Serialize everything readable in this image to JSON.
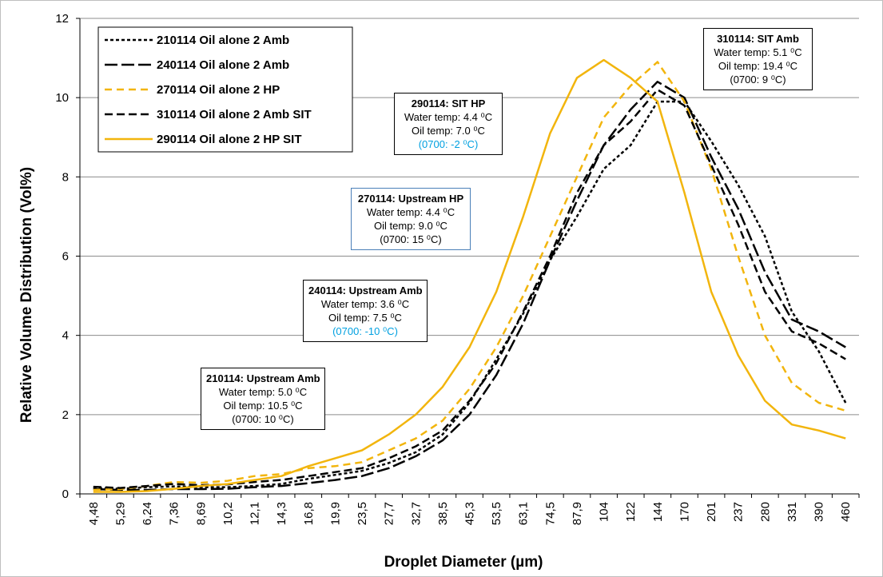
{
  "chart_data": {
    "type": "line",
    "xlabel": "Droplet Diameter (µm)",
    "ylabel": "Relative Volume Distribution (Vol%)",
    "ylim": [
      0,
      12
    ],
    "yticks": [
      "0",
      "2",
      "4",
      "6",
      "8",
      "10",
      "12"
    ],
    "grid": "horizontal",
    "legend_position": "top-left",
    "categories": [
      "4,48",
      "5,29",
      "6,24",
      "7,36",
      "8,69",
      "10,2",
      "12,1",
      "14,3",
      "16,8",
      "19,9",
      "23,5",
      "27,7",
      "32,7",
      "38,5",
      "45,3",
      "53,5",
      "63,1",
      "74,5",
      "87,9",
      "104",
      "122",
      "144",
      "170",
      "201",
      "237",
      "280",
      "331",
      "390",
      "460"
    ],
    "series": [
      {
        "name": "210114 Oil alone 2 Amb",
        "color": "#000000",
        "dash": "4,3",
        "values": [
          0.15,
          0.13,
          0.17,
          0.19,
          0.17,
          0.17,
          0.2,
          0.25,
          0.38,
          0.48,
          0.58,
          0.78,
          1.05,
          1.5,
          2.3,
          3.4,
          4.55,
          5.9,
          7.0,
          8.2,
          8.8,
          9.9,
          9.9,
          8.9,
          7.8,
          6.5,
          4.6,
          3.6,
          2.3
        ]
      },
      {
        "name": "240114 Oil alone 2 Amb",
        "color": "#000000",
        "dash": "16,5",
        "values": [
          0.12,
          0.1,
          0.1,
          0.12,
          0.12,
          0.13,
          0.17,
          0.2,
          0.27,
          0.35,
          0.45,
          0.65,
          0.95,
          1.35,
          2.0,
          3.0,
          4.3,
          5.9,
          7.4,
          8.8,
          9.7,
          10.4,
          10.0,
          8.5,
          7.2,
          5.6,
          4.4,
          4.1,
          3.7
        ]
      },
      {
        "name": "270114 Oil alone 2 HP",
        "color": "#f2b50d",
        "dash": "9,6",
        "values": [
          0.1,
          0.12,
          0.2,
          0.3,
          0.28,
          0.33,
          0.45,
          0.5,
          0.65,
          0.7,
          0.8,
          1.1,
          1.4,
          1.85,
          2.65,
          3.7,
          5.0,
          6.5,
          8.0,
          9.5,
          10.3,
          10.9,
          9.9,
          8.2,
          6.0,
          4.0,
          2.8,
          2.3,
          2.1
        ]
      },
      {
        "name": "310114 Oil alone 2 Amb SIT",
        "color": "#000000",
        "dash": "10,5",
        "values": [
          0.18,
          0.15,
          0.2,
          0.25,
          0.22,
          0.24,
          0.3,
          0.35,
          0.45,
          0.55,
          0.65,
          0.9,
          1.2,
          1.6,
          2.35,
          3.3,
          4.6,
          6.0,
          7.6,
          8.8,
          9.4,
          10.2,
          9.8,
          8.3,
          6.8,
          5.1,
          4.1,
          3.8,
          3.4
        ]
      },
      {
        "name": "290114 Oil alone 2 HP SIT",
        "color": "#f2b50d",
        "dash": "",
        "values": [
          0.05,
          0.05,
          0.07,
          0.13,
          0.2,
          0.25,
          0.35,
          0.45,
          0.7,
          0.9,
          1.1,
          1.5,
          2.0,
          2.7,
          3.7,
          5.1,
          7.0,
          9.1,
          10.5,
          10.95,
          10.5,
          9.9,
          7.6,
          5.1,
          3.5,
          2.35,
          1.75,
          1.6,
          1.4
        ]
      }
    ]
  },
  "annotations": [
    {
      "title": "310114: SIT Amb",
      "lines": [
        "Water temp: 5.1 ⁰C",
        "Oil temp: 19.4 ⁰C"
      ],
      "extra": "(0700:  9 ⁰C)",
      "highlight": false
    },
    {
      "title": "290114: SIT HP",
      "lines": [
        "Water temp: 4.4 ⁰C",
        "Oil temp: 7.0 ⁰C"
      ],
      "extra": "(0700: -2 ⁰C)",
      "highlight": true
    },
    {
      "title": "270114: Upstream HP",
      "lines": [
        "Water temp: 4.4 ⁰C",
        "Oil temp: 9.0 ⁰C"
      ],
      "extra": "(0700:  15 ⁰C)",
      "highlight": false
    },
    {
      "title": "240114: Upstream Amb",
      "lines": [
        "Water temp: 3.6 ⁰C",
        "Oil temp: 7.5 ⁰C"
      ],
      "extra": "(0700: -10 ⁰C)",
      "highlight": true
    },
    {
      "title": "210114: Upstream Amb",
      "lines": [
        "Water temp: 5.0 ⁰C",
        "Oil temp: 10.5 ⁰C"
      ],
      "extra": "(0700:  10 ⁰C)",
      "highlight": false
    }
  ]
}
